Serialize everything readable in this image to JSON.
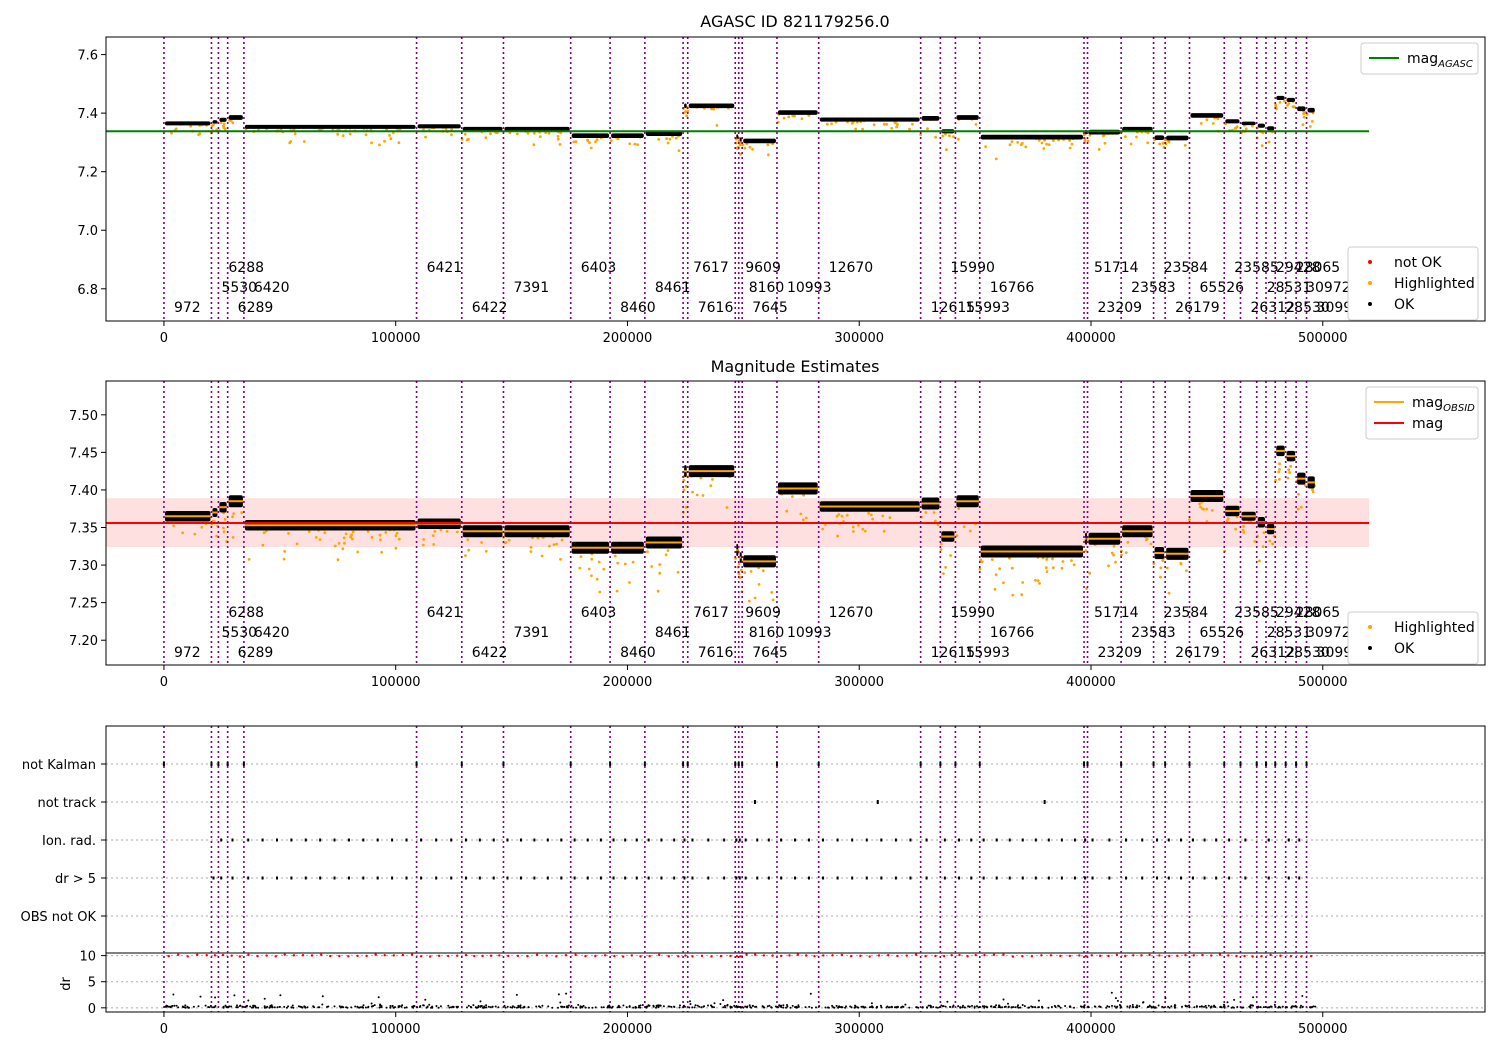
{
  "chart_data": [
    {
      "type": "scatter",
      "title": "AGASC ID 821179256.0",
      "xlim": [
        -25000,
        570000
      ],
      "ylim": [
        6.69,
        7.66
      ],
      "x_ticks": [
        0,
        100000,
        200000,
        300000,
        400000,
        500000
      ],
      "y_ticks": [
        6.8,
        7.0,
        7.2,
        7.4,
        7.6
      ],
      "y_tick_labels": [
        "6.8",
        "7.0",
        "7.2",
        "7.4",
        "7.6"
      ],
      "grid": false,
      "reference_lines": [
        {
          "name": "mag_AGASC",
          "value": 7.338,
          "x_range": [
            -25000,
            520000
          ],
          "color": "#008000"
        }
      ],
      "legend_top": {
        "position": "top-right",
        "entries": [
          {
            "label": "mag",
            "subscript": "AGASC",
            "color": "#008000",
            "kind": "line"
          }
        ]
      },
      "legend_bottom": {
        "position": "bottom-right",
        "entries": [
          {
            "label": "not OK",
            "color": "#ff0000",
            "kind": "dot"
          },
          {
            "label": "Highlighted",
            "color": "#ffa500",
            "kind": "dot"
          },
          {
            "label": "OK",
            "color": "#000000",
            "kind": "dot"
          }
        ]
      }
    },
    {
      "type": "scatter",
      "title": "Magnitude Estimates",
      "xlim": [
        -25000,
        570000
      ],
      "ylim": [
        7.167,
        7.545
      ],
      "x_ticks": [
        0,
        100000,
        200000,
        300000,
        400000,
        500000
      ],
      "y_ticks": [
        7.2,
        7.25,
        7.3,
        7.35,
        7.4,
        7.45,
        7.5
      ],
      "y_tick_labels": [
        "7.20",
        "7.25",
        "7.30",
        "7.35",
        "7.40",
        "7.45",
        "7.50"
      ],
      "grid": false,
      "reference_lines": [
        {
          "name": "mag",
          "value": 7.356,
          "band": [
            7.324,
            7.389
          ],
          "x_range": [
            -25000,
            520000
          ],
          "color": "#ff0000"
        }
      ],
      "legend_top": {
        "position": "top-right",
        "entries": [
          {
            "label": "mag",
            "subscript": "OBSID",
            "color": "#ffa500",
            "kind": "line"
          },
          {
            "label": "mag",
            "subscript": "",
            "color": "#ff0000",
            "kind": "line"
          }
        ]
      },
      "legend_bottom": {
        "position": "bottom-right",
        "entries": [
          {
            "label": "Highlighted",
            "color": "#ffa500",
            "kind": "dot"
          },
          {
            "label": "OK",
            "color": "#000000",
            "kind": "dot"
          }
        ]
      }
    },
    {
      "type": "scatter",
      "title": "",
      "xlim": [
        -25000,
        570000
      ],
      "x_ticks": [
        0,
        100000,
        200000,
        300000,
        400000,
        500000
      ],
      "flag_rows": [
        "not Kalman",
        "not track",
        "Ion. rad.",
        "dr > 5",
        "OBS not OK"
      ],
      "dr_axis": {
        "label": "dr",
        "ylim": [
          -0.8,
          10.5
        ],
        "ticks": [
          0,
          5,
          10
        ]
      },
      "grid": "horizontal dotted"
    }
  ],
  "observations": [
    {
      "x": 0,
      "obsid": "972",
      "row": 2,
      "mag": 7.365,
      "spread": 0.007,
      "flag": "ok",
      "nk": true,
      "ion": false,
      "dr5": false
    },
    {
      "x": 20500,
      "obsid": "5530",
      "row": 1,
      "mag": 7.37,
      "spread": 0.006,
      "flag": "nc",
      "nk": true,
      "ion": false,
      "dr5": true
    },
    {
      "x": 23500,
      "obsid": "6288",
      "row": 0,
      "mag": 7.377,
      "spread": 0.007,
      "flag": "nc",
      "nk": true,
      "ion": true,
      "dr5": true
    },
    {
      "x": 27500,
      "obsid": "6289",
      "row": 2,
      "mag": 7.385,
      "spread": 0.008,
      "flag": "nc",
      "nk": true,
      "ion": true,
      "dr5": true
    },
    {
      "x": 34500,
      "obsid": "6420",
      "row": 1,
      "mag": 7.353,
      "spread": 0.007,
      "flag": "ok",
      "nk": true,
      "ion": true,
      "dr5": true
    },
    {
      "x": 109000,
      "obsid": "6421",
      "row": 0,
      "mag": 7.355,
      "spread": 0.007,
      "flag": "ok",
      "nk": true,
      "ion": true,
      "dr5": true
    },
    {
      "x": 128500,
      "obsid": "6422",
      "row": 2,
      "mag": 7.345,
      "spread": 0.008,
      "flag": "ok",
      "nk": true,
      "ion": true,
      "dr5": true
    },
    {
      "x": 146500,
      "obsid": "7391",
      "row": 1,
      "mag": 7.345,
      "spread": 0.008,
      "flag": "ok",
      "nk": true,
      "ion": true,
      "dr5": true
    },
    {
      "x": 175500,
      "obsid": "6403",
      "row": 0,
      "mag": 7.323,
      "spread": 0.008,
      "flag": "ok",
      "nk": true,
      "ion": true,
      "dr5": true
    },
    {
      "x": 192500,
      "obsid": "8460",
      "row": 2,
      "mag": 7.323,
      "spread": 0.008,
      "flag": "ok",
      "nk": true,
      "ion": true,
      "dr5": true
    },
    {
      "x": 207500,
      "obsid": "8461",
      "row": 1,
      "mag": 7.33,
      "spread": 0.008,
      "flag": "ok",
      "nk": true,
      "ion": true,
      "dr5": true
    },
    {
      "x": 224000,
      "obsid": "7617",
      "row": 0,
      "mag": 7.425,
      "spread": 0.008,
      "flag": "ok",
      "nk": true,
      "ion": true,
      "dr5": true
    },
    {
      "x": 226000,
      "obsid": "7616",
      "row": 2,
      "mag": 7.425,
      "spread": 0.008,
      "flag": "ok",
      "nk": true,
      "ion": true,
      "dr5": true
    },
    {
      "x": 246500,
      "obsid": "9609",
      "row": 0,
      "mag": 7.32,
      "spread": 0.008,
      "flag": "nc",
      "nk": true,
      "ion": true,
      "dr5": true
    },
    {
      "x": 248000,
      "obsid": "8160",
      "row": 1,
      "mag": 7.31,
      "spread": 0.007,
      "flag": "nc",
      "nk": true,
      "ion": true,
      "dr5": true
    },
    {
      "x": 249500,
      "obsid": "7645",
      "row": 2,
      "mag": 7.305,
      "spread": 0.008,
      "flag": "nc",
      "nk": true,
      "ion": true,
      "dr5": true
    },
    {
      "x": 264500,
      "obsid": "10993",
      "row": 1,
      "mag": 7.402,
      "spread": 0.008,
      "flag": "ok",
      "nk": true,
      "ion": true,
      "dr5": true
    },
    {
      "x": 282500,
      "obsid": "12670",
      "row": 0,
      "mag": 7.378,
      "spread": 0.007,
      "flag": "ok",
      "nk": true,
      "ion": true,
      "dr5": true
    },
    {
      "x": 326500,
      "obsid": "12615",
      "row": 2,
      "mag": 7.382,
      "spread": 0.008,
      "flag": "ok",
      "nk": true,
      "ion": true,
      "dr5": true
    },
    {
      "x": 335000,
      "obsid": "15990",
      "row": 0,
      "mag": 7.338,
      "spread": 0.007,
      "flag": "ok",
      "nk": true,
      "ion": true,
      "dr5": true
    },
    {
      "x": 341500,
      "obsid": "15993",
      "row": 2,
      "mag": 7.385,
      "spread": 0.008,
      "flag": "ok",
      "nk": true,
      "ion": true,
      "dr5": true
    },
    {
      "x": 352000,
      "obsid": "16766",
      "row": 1,
      "mag": 7.318,
      "spread": 0.008,
      "flag": "ok",
      "nk": true,
      "ion": true,
      "dr5": true
    },
    {
      "x": 397000,
      "obsid": "51714",
      "row": 0,
      "mag": 7.335,
      "spread": 0.008,
      "flag": "nc",
      "nk": true,
      "ion": true,
      "dr5": true
    },
    {
      "x": 398500,
      "obsid": "23209",
      "row": 2,
      "mag": 7.335,
      "spread": 0.008,
      "flag": "nc",
      "nk": true,
      "ion": true,
      "dr5": true
    },
    {
      "x": 413000,
      "obsid": "23583",
      "row": 1,
      "mag": 7.345,
      "spread": 0.008,
      "flag": "ok",
      "nk": true,
      "ion": true,
      "dr5": true
    },
    {
      "x": 427000,
      "obsid": "23584",
      "row": 0,
      "mag": 7.316,
      "spread": 0.008,
      "flag": "ok",
      "nk": true,
      "ion": true,
      "dr5": true
    },
    {
      "x": 432000,
      "obsid": "26179",
      "row": 2,
      "mag": 7.315,
      "spread": 0.008,
      "flag": "ok",
      "nk": true,
      "ion": true,
      "dr5": true
    },
    {
      "x": 442500,
      "obsid": "65526",
      "row": 1,
      "mag": 7.392,
      "spread": 0.008,
      "flag": "ok",
      "nk": true,
      "ion": true,
      "dr5": true
    },
    {
      "x": 457500,
      "obsid": "23585",
      "row": 0,
      "mag": 7.372,
      "spread": 0.007,
      "flag": "ok",
      "nk": true,
      "ion": true,
      "dr5": true
    },
    {
      "x": 464500,
      "obsid": "26312",
      "row": 2,
      "mag": 7.365,
      "spread": 0.006,
      "flag": "ok",
      "nk": true,
      "ion": true,
      "dr5": true
    },
    {
      "x": 471500,
      "obsid": "28531",
      "row": 1,
      "mag": 7.357,
      "spread": 0.007,
      "flag": "ok",
      "nk": true,
      "ion": false,
      "dr5": false
    },
    {
      "x": 475500,
      "obsid": "29428",
      "row": 0,
      "mag": 7.348,
      "spread": 0.007,
      "flag": "ok",
      "nk": true,
      "ion": true,
      "dr5": true
    },
    {
      "x": 479500,
      "obsid": "28530",
      "row": 2,
      "mag": 7.452,
      "spread": 0.007,
      "flag": "ok",
      "nk": true,
      "ion": false,
      "dr5": false
    },
    {
      "x": 484000,
      "obsid": "28065",
      "row": 0,
      "mag": 7.445,
      "spread": 0.007,
      "flag": "ok",
      "nk": true,
      "ion": true,
      "dr5": true
    },
    {
      "x": 488500,
      "obsid": "30972",
      "row": 1,
      "mag": 7.415,
      "spread": 0.008,
      "flag": "ok",
      "nk": true,
      "ion": true,
      "dr5": true
    },
    {
      "x": 493000,
      "obsid": "30990",
      "row": 2,
      "mag": 7.41,
      "spread": 0.008,
      "flag": "ok",
      "nk": true,
      "ion": false,
      "dr5": false
    }
  ],
  "series_colors": {
    "ok": "#000000",
    "highlighted": "#ffa500",
    "not_ok": "#ff0000",
    "obsid_boundary": "#800080"
  }
}
